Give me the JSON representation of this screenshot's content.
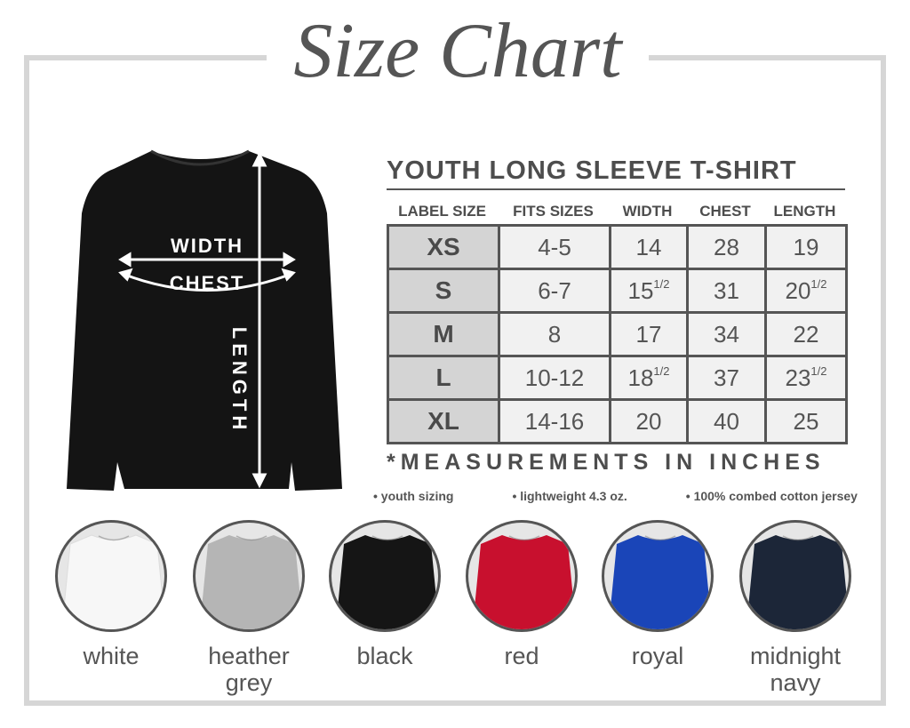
{
  "title": "Size Chart",
  "diagram": {
    "width_label": "WIDTH",
    "chest_label": "CHEST",
    "length_label": "LENGTH",
    "shirt_color": "#141414"
  },
  "table": {
    "title": "YOUTH LONG SLEEVE T-SHIRT",
    "headers": [
      "LABEL SIZE",
      "FITS SIZES",
      "WIDTH",
      "CHEST",
      "LENGTH"
    ],
    "rows": [
      {
        "label": "XS",
        "fits": "4-5",
        "width": "14",
        "width_frac": "",
        "chest": "28",
        "length": "19",
        "length_frac": ""
      },
      {
        "label": "S",
        "fits": "6-7",
        "width": "15",
        "width_frac": "1/2",
        "chest": "31",
        "length": "20",
        "length_frac": "1/2"
      },
      {
        "label": "M",
        "fits": "8",
        "width": "17",
        "width_frac": "",
        "chest": "34",
        "length": "22",
        "length_frac": ""
      },
      {
        "label": "L",
        "fits": "10-12",
        "width": "18",
        "width_frac": "1/2",
        "chest": "37",
        "length": "23",
        "length_frac": "1/2"
      },
      {
        "label": "XL",
        "fits": "14-16",
        "width": "20",
        "width_frac": "",
        "chest": "40",
        "length": "25",
        "length_frac": ""
      }
    ]
  },
  "measurement_note": "*MEASUREMENTS IN INCHES",
  "features": [
    "• youth sizing",
    "• lightweight 4.3 oz.",
    "• 100% combed cotton jersey"
  ],
  "colors": [
    {
      "name": "white",
      "hex": "#f7f7f7"
    },
    {
      "name": "heather grey",
      "hex": "#b5b5b5"
    },
    {
      "name": "black",
      "hex": "#151515"
    },
    {
      "name": "red",
      "hex": "#c8102e"
    },
    {
      "name": "royal",
      "hex": "#1a45b8"
    },
    {
      "name": "midnight navy",
      "hex": "#1c2638"
    }
  ]
}
